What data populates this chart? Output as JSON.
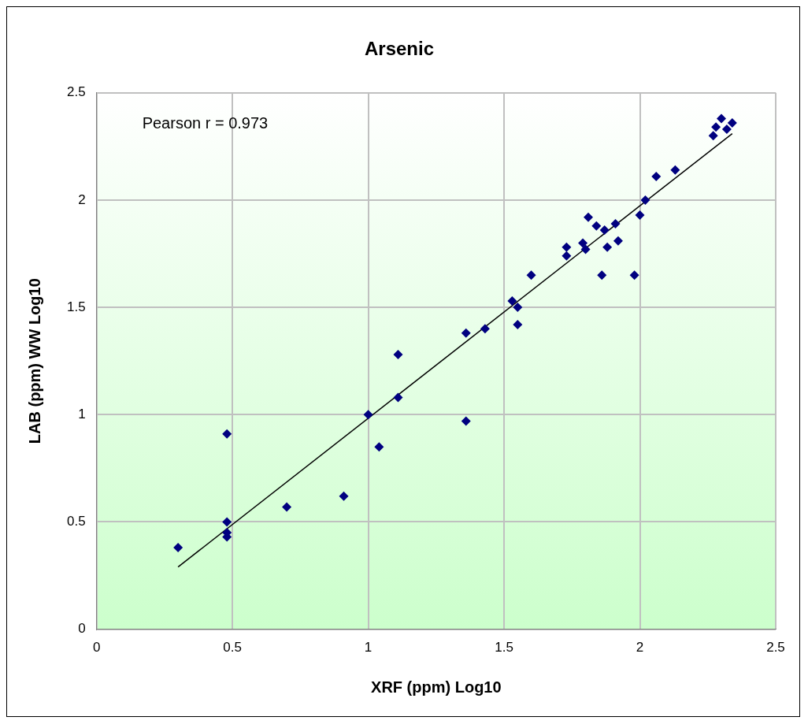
{
  "chart_data": {
    "type": "scatter",
    "title": "Arsenic",
    "xlabel": "XRF (ppm) Log10",
    "ylabel": "LAB (ppm) WW Log10",
    "annotations": [
      "Pearson r = 0.973"
    ],
    "series": [
      {
        "type": "scatter",
        "color": "#000080",
        "marker": "diamond",
        "x": [
          0.3,
          0.48,
          0.48,
          0.48,
          0.48,
          0.7,
          0.91,
          1.0,
          1.04,
          1.11,
          1.11,
          1.36,
          1.36,
          1.43,
          1.53,
          1.55,
          1.55,
          1.6,
          1.73,
          1.73,
          1.79,
          1.8,
          1.81,
          1.84,
          1.86,
          1.87,
          1.88,
          1.91,
          1.92,
          1.98,
          2.0,
          2.02,
          2.06,
          2.13,
          2.27,
          2.28,
          2.3,
          2.32,
          2.34
        ],
        "values": [
          0.38,
          0.91,
          0.5,
          0.45,
          0.43,
          0.57,
          0.62,
          1.0,
          0.85,
          1.08,
          1.28,
          1.38,
          0.97,
          1.4,
          1.53,
          1.5,
          1.42,
          1.65,
          1.74,
          1.78,
          1.8,
          1.77,
          1.92,
          1.88,
          1.65,
          1.86,
          1.78,
          1.89,
          1.81,
          1.65,
          1.93,
          2.0,
          2.11,
          2.14,
          2.3,
          2.34,
          2.38,
          2.33,
          2.36
        ]
      },
      {
        "type": "line",
        "color": "#000000",
        "marker": "none",
        "line_style": "solid",
        "x": [
          0.3,
          2.34
        ],
        "values": [
          0.29,
          2.31
        ]
      }
    ],
    "xlim": [
      0,
      2.5
    ],
    "ylim": [
      0,
      2.5
    ],
    "xticks": [
      0,
      0.5,
      1,
      1.5,
      2,
      2.5
    ],
    "yticks": [
      0,
      0.5,
      1,
      1.5,
      2,
      2.5
    ],
    "grid": true,
    "legend": false
  }
}
